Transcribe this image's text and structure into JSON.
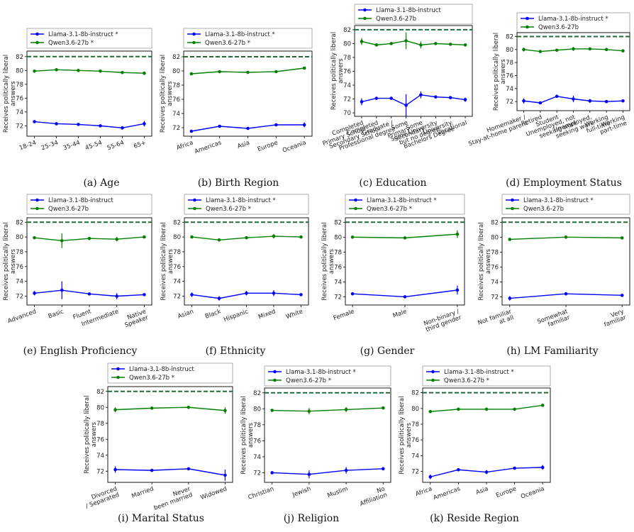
{
  "colors": {
    "llama": "#0000ff",
    "qwen": "#008000",
    "ref": "#1f6b3a"
  },
  "ylabel_line1": "Receives politically liberal",
  "ylabel_line2": "answers",
  "chart_data": [
    {
      "type": "line",
      "caption": "(a) Age",
      "categories": [
        "18-24",
        "25-34",
        "35-44",
        "45-54",
        "55-64",
        "65+"
      ],
      "ylim": [
        70.5,
        82.8
      ],
      "yticks": [
        72,
        74,
        76,
        78,
        80,
        82
      ],
      "ref_line": 82,
      "series": [
        {
          "name": "Llama-3.1-8b-instruct *",
          "values": [
            72.6,
            72.3,
            72.2,
            72.0,
            71.7,
            72.3
          ],
          "err": [
            0.2,
            0.15,
            0.15,
            0.2,
            0.25,
            0.4
          ]
        },
        {
          "name": "Qwen3.6-27b *",
          "values": [
            79.9,
            80.1,
            80.0,
            79.9,
            79.7,
            79.6
          ],
          "err": [
            0.15,
            0.1,
            0.1,
            0.1,
            0.15,
            0.25
          ]
        }
      ]
    },
    {
      "type": "line",
      "caption": "(b) Birth Region",
      "categories": [
        "Africa",
        "Americas",
        "Asia",
        "Europe",
        "Oceania"
      ],
      "ylim": [
        70.8,
        82.8
      ],
      "yticks": [
        72,
        74,
        76,
        78,
        80,
        82
      ],
      "ref_line": 82,
      "series": [
        {
          "name": "Llama-3.1-8b-instruct *",
          "values": [
            71.5,
            72.2,
            71.9,
            72.4,
            72.4
          ],
          "err": [
            0.2,
            0.15,
            0.2,
            0.15,
            0.35
          ]
        },
        {
          "name": "Qwen3.6-27b *",
          "values": [
            79.6,
            79.9,
            79.8,
            79.9,
            80.4
          ],
          "err": [
            0.15,
            0.1,
            0.1,
            0.1,
            0.2
          ]
        }
      ]
    },
    {
      "type": "line",
      "caption": "(c) Education",
      "categories": [
        "Completed Primary School",
        "Completed Secondary School",
        "Graduate / Professional degree",
        "Some Primary",
        "Some Secondary",
        "Some University but no degree",
        "University Bachelors Degree",
        "Vocational"
      ],
      "xtick_lines": [
        [
          "Completed",
          "Primary School"
        ],
        [
          "Completed",
          "Secondary School"
        ],
        [
          "Graduate /",
          "Professional degree"
        ],
        [
          "Some",
          "Primary"
        ],
        [
          "Some",
          "Secondary"
        ],
        [
          "Some University",
          "but no degree"
        ],
        [
          "University",
          "Bachelors Degree"
        ],
        [
          "Vocational"
        ]
      ],
      "ylim": [
        69.5,
        82.6
      ],
      "yticks": [
        70,
        72,
        74,
        76,
        78,
        80,
        82
      ],
      "ref_line": 82,
      "series": [
        {
          "name": "Llama-3.1-8b-instruct",
          "values": [
            71.6,
            72.1,
            72.1,
            71.1,
            72.6,
            72.3,
            72.2,
            71.9
          ],
          "err": [
            0.5,
            0.2,
            0.2,
            1.6,
            0.5,
            0.2,
            0.15,
            0.3
          ]
        },
        {
          "name": "Qwen3.6-27b",
          "values": [
            80.3,
            79.8,
            80.0,
            80.4,
            79.8,
            80.0,
            79.9,
            79.8
          ],
          "err": [
            0.5,
            0.2,
            0.2,
            1.2,
            0.5,
            0.2,
            0.15,
            0.2
          ]
        }
      ]
    },
    {
      "type": "line",
      "caption": "(d) Employment Status",
      "categories": [
        "Homemaker / Stay-at-home parent",
        "Retired",
        "Student",
        "Unemployed, not seeking work",
        "Unemployed, seeking work",
        "Working full-time",
        "Working part-time"
      ],
      "xtick_lines": [
        [
          "Homemaker /",
          "Stay-at-home parent"
        ],
        [
          "Retired"
        ],
        [
          "Student"
        ],
        [
          "Unemployed, not",
          "seeking work"
        ],
        [
          "Unemployed,",
          "seeking work"
        ],
        [
          "Working",
          "full-time"
        ],
        [
          "Working",
          "part-time"
        ]
      ],
      "ylim": [
        70.6,
        82.6
      ],
      "yticks": [
        72,
        74,
        76,
        78,
        80,
        82
      ],
      "ref_line": 82,
      "series": [
        {
          "name": "Llama-3.1-8b-instruct *",
          "values": [
            72.1,
            71.8,
            72.8,
            72.4,
            72.1,
            72.0,
            72.1
          ],
          "err": [
            0.4,
            0.2,
            0.2,
            0.5,
            0.3,
            0.1,
            0.2
          ]
        },
        {
          "name": "Qwen3.6-27b",
          "values": [
            80.0,
            79.7,
            79.9,
            80.1,
            80.1,
            80.0,
            79.8
          ],
          "err": [
            0.3,
            0.15,
            0.15,
            0.3,
            0.2,
            0.1,
            0.15
          ]
        }
      ]
    },
    {
      "type": "line",
      "caption": "(e) English Proficiency",
      "categories": [
        "Advanced",
        "Basic",
        "Fluent",
        "Intermediate",
        "Native Speaker"
      ],
      "xtick_lines": [
        [
          "Advanced"
        ],
        [
          "Basic"
        ],
        [
          "Fluent"
        ],
        [
          "Intermediate"
        ],
        [
          "Native",
          "Speaker"
        ]
      ],
      "ylim": [
        70.8,
        82.6
      ],
      "yticks": [
        72,
        74,
        76,
        78,
        80,
        82
      ],
      "ref_line": 82,
      "series": [
        {
          "name": "Llama-3.1-8b-instruct",
          "values": [
            72.4,
            72.8,
            72.3,
            72.0,
            72.2
          ],
          "err": [
            0.3,
            1.2,
            0.15,
            0.4,
            0.1
          ]
        },
        {
          "name": "Qwen3.6-27b",
          "values": [
            79.9,
            79.5,
            79.8,
            79.7,
            80.0
          ],
          "err": [
            0.2,
            1.0,
            0.1,
            0.3,
            0.1
          ]
        }
      ]
    },
    {
      "type": "line",
      "caption": "(f) Ethnicity",
      "categories": [
        "Asian",
        "Black",
        "Hispanic",
        "Mixed",
        "White"
      ],
      "ylim": [
        70.8,
        82.6
      ],
      "yticks": [
        72,
        74,
        76,
        78,
        80,
        82
      ],
      "ref_line": 82,
      "series": [
        {
          "name": "Llama-3.1-8b-instruct *",
          "values": [
            72.2,
            71.7,
            72.4,
            72.4,
            72.2
          ],
          "err": [
            0.3,
            0.3,
            0.3,
            0.4,
            0.1
          ]
        },
        {
          "name": "Qwen3.6-27b *",
          "values": [
            80.0,
            79.6,
            79.9,
            80.1,
            80.0
          ],
          "err": [
            0.2,
            0.2,
            0.2,
            0.3,
            0.1
          ]
        }
      ]
    },
    {
      "type": "line",
      "caption": "(g) Gender",
      "categories": [
        "Female",
        "Male",
        "Non-binary / third gender"
      ],
      "xtick_lines": [
        [
          "Female"
        ],
        [
          "Male"
        ],
        [
          "Non-binary /",
          "third gender"
        ]
      ],
      "ylim": [
        70.9,
        82.6
      ],
      "yticks": [
        72,
        74,
        76,
        78,
        80,
        82
      ],
      "ref_line": 82,
      "series": [
        {
          "name": "Llama-3.1-8b-instruct *",
          "values": [
            72.4,
            72.0,
            72.9
          ],
          "err": [
            0.1,
            0.1,
            0.6
          ]
        },
        {
          "name": "Qwen3.6-27b *",
          "values": [
            80.0,
            79.9,
            80.4
          ],
          "err": [
            0.1,
            0.1,
            0.5
          ]
        }
      ]
    },
    {
      "type": "line",
      "caption": "(h) LM Familiarity",
      "categories": [
        "Not familiar at all",
        "Somewhat familiar",
        "Very familiar"
      ],
      "xtick_lines": [
        [
          "Not familiar",
          "at all"
        ],
        [
          "Somewhat",
          "familiar"
        ],
        [
          "Very",
          "familiar"
        ]
      ],
      "ylim": [
        70.9,
        82.6
      ],
      "yticks": [
        72,
        74,
        76,
        78,
        80,
        82
      ],
      "ref_line": 82,
      "series": [
        {
          "name": "Llama-3.1-8b-instruct *",
          "values": [
            71.8,
            72.4,
            72.2
          ],
          "err": [
            0.3,
            0.1,
            0.1
          ]
        },
        {
          "name": "Qwen3.6-27b",
          "values": [
            79.7,
            80.0,
            79.9
          ],
          "err": [
            0.2,
            0.1,
            0.1
          ]
        }
      ]
    },
    {
      "type": "line",
      "caption": "(i) Marital Status",
      "categories": [
        "Divorced / Separated",
        "Married",
        "Never been married",
        "Widowed"
      ],
      "xtick_lines": [
        [
          "Divorced",
          "/ Separated"
        ],
        [
          "Married"
        ],
        [
          "Never",
          "been married"
        ],
        [
          "Widowed"
        ]
      ],
      "ylim": [
        70.6,
        82.6
      ],
      "yticks": [
        72,
        74,
        76,
        78,
        80,
        82
      ],
      "ref_line": 82,
      "series": [
        {
          "name": "Llama-3.1-8b-instruct",
          "values": [
            72.2,
            72.1,
            72.3,
            71.5
          ],
          "err": [
            0.4,
            0.1,
            0.1,
            0.7
          ]
        },
        {
          "name": "Qwen3.6-27b *",
          "values": [
            79.7,
            79.9,
            80.0,
            79.6
          ],
          "err": [
            0.3,
            0.1,
            0.1,
            0.4
          ]
        }
      ]
    },
    {
      "type": "line",
      "caption": "(j) Religion",
      "categories": [
        "Christian",
        "Jewish",
        "Muslim",
        "No Affiliation"
      ],
      "xtick_lines": [
        [
          "Christian"
        ],
        [
          "Jewish"
        ],
        [
          "Muslim"
        ],
        [
          "No",
          "Affiliation"
        ]
      ],
      "ylim": [
        70.8,
        82.6
      ],
      "yticks": [
        72,
        74,
        76,
        78,
        80,
        82
      ],
      "ref_line": 82,
      "series": [
        {
          "name": "Llama-3.1-8b-instruct *",
          "values": [
            72.0,
            71.8,
            72.3,
            72.5
          ],
          "err": [
            0.15,
            0.5,
            0.4,
            0.1
          ]
        },
        {
          "name": "Qwen3.6-27b *",
          "values": [
            79.8,
            79.7,
            79.9,
            80.1
          ],
          "err": [
            0.1,
            0.4,
            0.3,
            0.1
          ]
        }
      ]
    },
    {
      "type": "line",
      "caption": "(k) Reside Region",
      "categories": [
        "Africa",
        "Americas",
        "Asia",
        "Europe",
        "Oceania"
      ],
      "ylim": [
        70.6,
        82.6
      ],
      "yticks": [
        72,
        74,
        76,
        78,
        80,
        82
      ],
      "ref_line": 82,
      "series": [
        {
          "name": "Llama-3.1-8b-instruct *",
          "values": [
            71.3,
            72.2,
            71.9,
            72.4,
            72.5
          ],
          "err": [
            0.3,
            0.15,
            0.25,
            0.15,
            0.3
          ]
        },
        {
          "name": "Qwen3.6-27b *",
          "values": [
            79.6,
            79.9,
            79.9,
            79.9,
            80.4
          ],
          "err": [
            0.2,
            0.1,
            0.2,
            0.1,
            0.2
          ]
        }
      ]
    }
  ]
}
